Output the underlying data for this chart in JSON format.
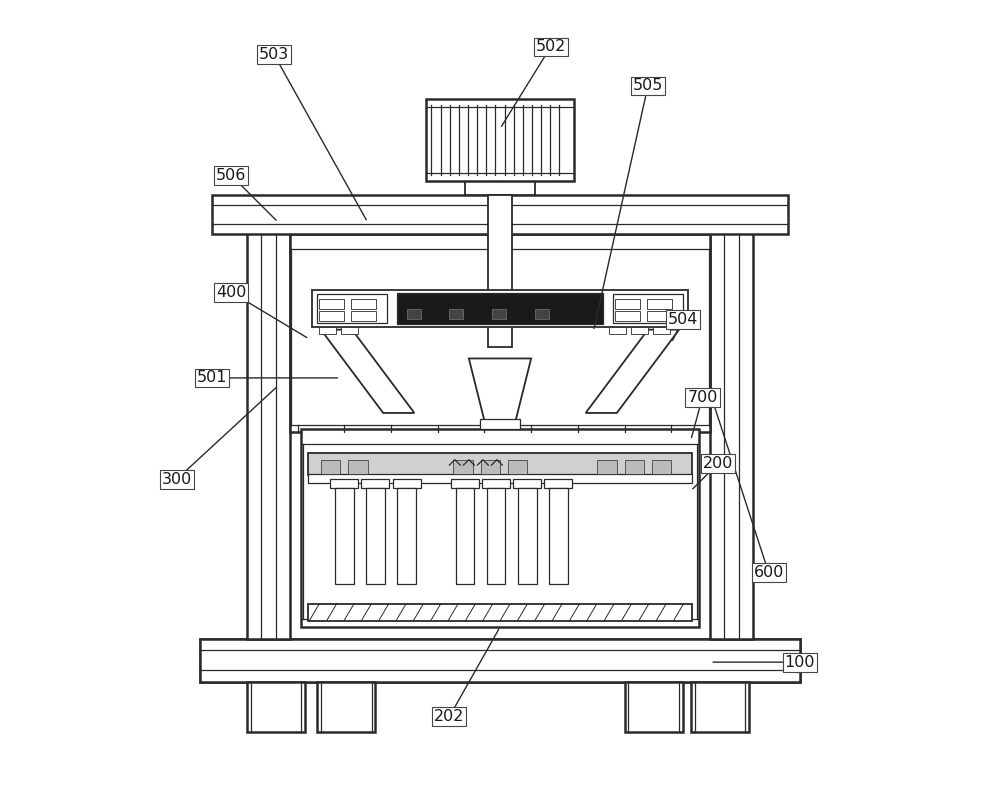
{
  "bg_color": "#ffffff",
  "lc": "#2a2a2a",
  "figsize": [
    10.0,
    7.87
  ],
  "dpi": 100,
  "annotations": [
    [
      "503",
      [
        0.21,
        0.935
      ],
      [
        0.33,
        0.72
      ]
    ],
    [
      "502",
      [
        0.565,
        0.945
      ],
      [
        0.5,
        0.84
      ]
    ],
    [
      "505",
      [
        0.69,
        0.895
      ],
      [
        0.62,
        0.58
      ]
    ],
    [
      "506",
      [
        0.155,
        0.78
      ],
      [
        0.215,
        0.72
      ]
    ],
    [
      "400",
      [
        0.155,
        0.63
      ],
      [
        0.255,
        0.57
      ]
    ],
    [
      "501",
      [
        0.13,
        0.52
      ],
      [
        0.295,
        0.52
      ]
    ],
    [
      "504",
      [
        0.735,
        0.595
      ],
      [
        0.72,
        0.565
      ]
    ],
    [
      "700",
      [
        0.76,
        0.495
      ],
      [
        0.745,
        0.44
      ]
    ],
    [
      "200",
      [
        0.78,
        0.41
      ],
      [
        0.745,
        0.375
      ]
    ],
    [
      "300",
      [
        0.085,
        0.39
      ],
      [
        0.215,
        0.51
      ]
    ],
    [
      "600",
      [
        0.845,
        0.27
      ],
      [
        0.77,
        0.5
      ]
    ],
    [
      "100",
      [
        0.885,
        0.155
      ],
      [
        0.77,
        0.155
      ]
    ],
    [
      "202",
      [
        0.435,
        0.085
      ],
      [
        0.5,
        0.2
      ]
    ]
  ]
}
